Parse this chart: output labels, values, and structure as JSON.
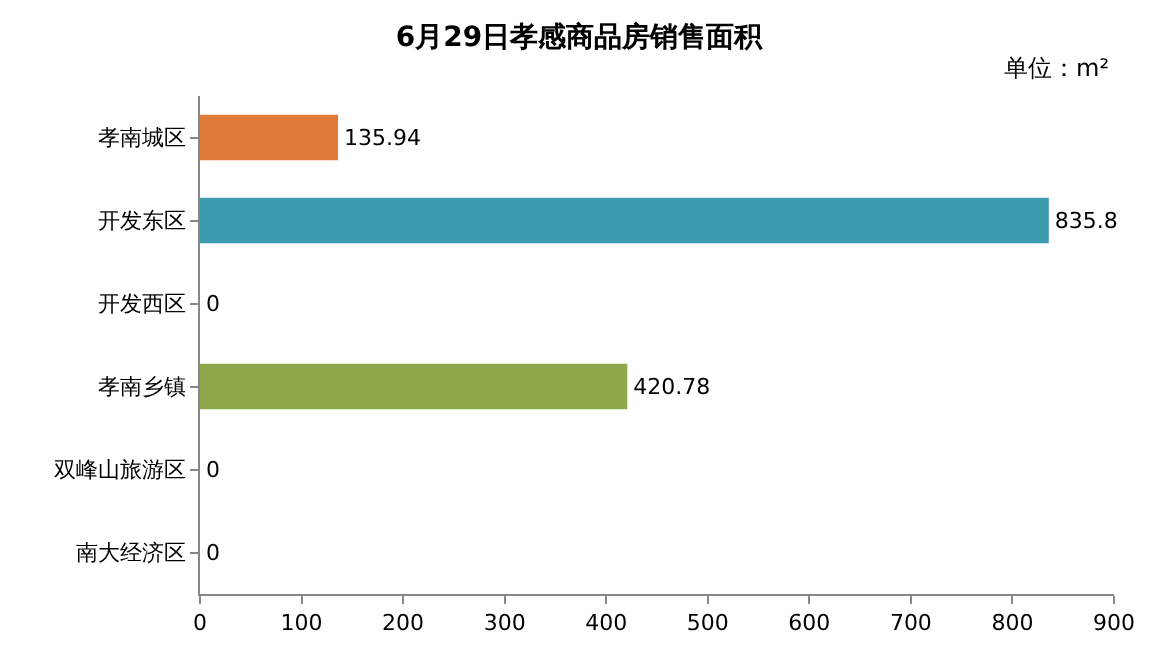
{
  "chart_data": {
    "type": "bar",
    "orientation": "horizontal",
    "title": "6月29日孝感商品房销售面积",
    "categories": [
      "孝南城区",
      "开发东区",
      "开发西区",
      "孝南乡镇",
      "双峰山旅游区",
      "南大经济区"
    ],
    "values": [
      135.94,
      835.8,
      0,
      420.78,
      0,
      0
    ],
    "colors": [
      "#e07b39",
      "#3d9cb0",
      "#4bacc6",
      "#8ea94b",
      "#4bacc6",
      "#4bacc6"
    ],
    "xlim": [
      0,
      900
    ],
    "xticks": [
      0,
      100,
      200,
      300,
      400,
      500,
      600,
      700,
      800,
      900
    ],
    "grid": false,
    "data_labels": true,
    "annotations": [
      "单位：m²"
    ]
  }
}
